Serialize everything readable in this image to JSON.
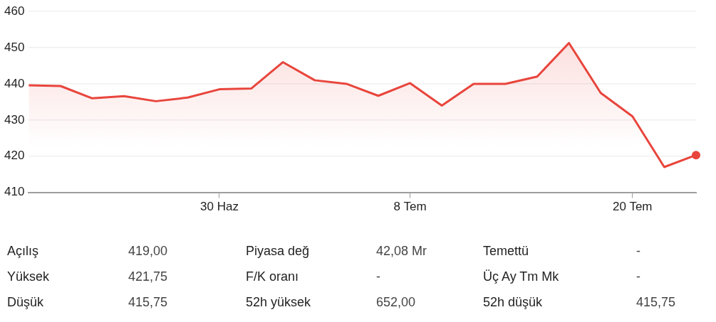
{
  "chart_data": {
    "type": "area",
    "categories": [
      null,
      null,
      null,
      null,
      null,
      null,
      "30 Haz",
      null,
      null,
      null,
      null,
      null,
      "8 Tem",
      null,
      null,
      null,
      null,
      null,
      null,
      "20 Tem",
      null,
      null
    ],
    "series": [
      {
        "color": "#e8453c",
        "values": [
          439.6,
          439.4,
          436,
          436.6,
          435.2,
          436.2,
          438.5,
          438.7,
          446,
          441,
          440,
          436.7,
          440.2,
          434,
          440,
          440,
          442,
          451.3,
          437.5,
          431,
          417,
          420.3
        ]
      }
    ],
    "ylim": [
      410,
      460
    ],
    "yticks": [
      410,
      420,
      430,
      440,
      450,
      460
    ],
    "grid": "y",
    "legend": false,
    "annotations": [
      "Açılış",
      "419,00",
      "Piyasa değ",
      "42,08 Mr",
      "Temettü",
      "-",
      "Yüksek",
      "421,75",
      "F/K oranı",
      "-",
      "Üç Ay Tm Mk",
      "-",
      "Düşük",
      "415,75",
      "52h yüksek",
      "652,00",
      "52h düşük",
      "415,75"
    ]
  }
}
